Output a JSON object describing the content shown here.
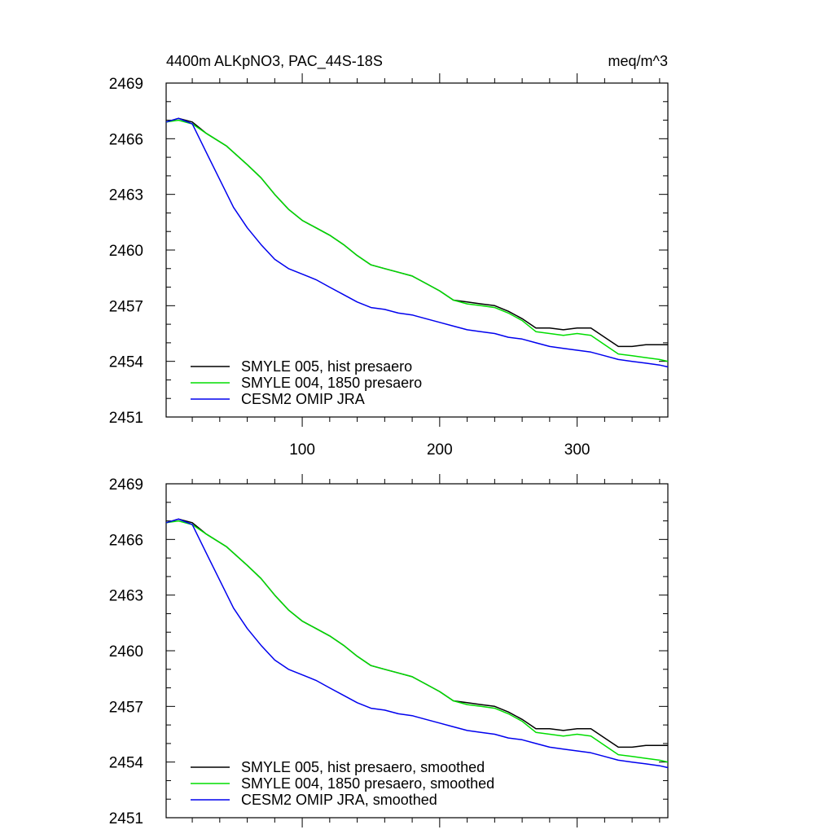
{
  "header": {
    "title": "4400m ALKpNO3, PAC_44S-18S",
    "units": "meq/m^3"
  },
  "chart_data": [
    {
      "type": "line",
      "title": "4400m ALKpNO3, PAC_44S-18S",
      "units": "meq/m^3",
      "xlim": [
        1,
        366
      ],
      "ylim": [
        2451,
        2469
      ],
      "y_ticks": [
        2451,
        2454,
        2457,
        2460,
        2463,
        2466,
        2469
      ],
      "x_ticks": [
        100,
        200,
        300
      ],
      "x_tick_labels_shown": true,
      "grid": false,
      "legend_position": "bottom-left",
      "series": [
        {
          "name": "SMYLE 005, hist presaero",
          "color": "#000000",
          "x": [
            1,
            10,
            20,
            30,
            45,
            60,
            70,
            80,
            90,
            100,
            110,
            120,
            130,
            140,
            150,
            160,
            170,
            180,
            190,
            200,
            210,
            220,
            230,
            240,
            250,
            260,
            270,
            280,
            290,
            300,
            310,
            320,
            330,
            340,
            350,
            360,
            366
          ],
          "y": [
            2466.9,
            2467.1,
            2466.9,
            2466.3,
            2465.6,
            2464.6,
            2463.9,
            2463.0,
            2462.2,
            2461.6,
            2461.2,
            2460.8,
            2460.3,
            2459.7,
            2459.2,
            2459.0,
            2458.8,
            2458.6,
            2458.2,
            2457.8,
            2457.3,
            2457.2,
            2457.1,
            2457.0,
            2456.7,
            2456.3,
            2455.8,
            2455.8,
            2455.7,
            2455.8,
            2455.8,
            2455.3,
            2454.8,
            2454.8,
            2454.9,
            2454.9,
            2454.9
          ]
        },
        {
          "name": "SMYLE 004, 1850 presaero",
          "color": "#00dd00",
          "x": [
            1,
            10,
            20,
            30,
            45,
            60,
            70,
            80,
            90,
            100,
            110,
            120,
            130,
            140,
            150,
            160,
            170,
            180,
            190,
            200,
            210,
            220,
            230,
            240,
            250,
            260,
            270,
            280,
            290,
            300,
            310,
            320,
            330,
            340,
            350,
            360,
            366
          ],
          "y": [
            2466.9,
            2467.0,
            2466.8,
            2466.3,
            2465.6,
            2464.6,
            2463.9,
            2463.0,
            2462.2,
            2461.6,
            2461.2,
            2460.8,
            2460.3,
            2459.7,
            2459.2,
            2459.0,
            2458.8,
            2458.6,
            2458.2,
            2457.8,
            2457.3,
            2457.1,
            2457.0,
            2456.9,
            2456.6,
            2456.2,
            2455.6,
            2455.5,
            2455.4,
            2455.5,
            2455.4,
            2454.9,
            2454.4,
            2454.3,
            2454.2,
            2454.1,
            2454.0
          ]
        },
        {
          "name": "CESM2 OMIP JRA",
          "color": "#0000ee",
          "x": [
            1,
            10,
            20,
            30,
            40,
            50,
            60,
            70,
            80,
            90,
            100,
            110,
            120,
            130,
            140,
            150,
            160,
            170,
            180,
            190,
            200,
            210,
            220,
            230,
            240,
            250,
            260,
            270,
            280,
            290,
            300,
            310,
            320,
            330,
            340,
            350,
            360,
            366
          ],
          "y": [
            2466.9,
            2467.1,
            2466.8,
            2465.3,
            2463.8,
            2462.3,
            2461.2,
            2460.3,
            2459.5,
            2459.0,
            2458.7,
            2458.4,
            2458.0,
            2457.6,
            2457.2,
            2456.9,
            2456.8,
            2456.6,
            2456.5,
            2456.3,
            2456.1,
            2455.9,
            2455.7,
            2455.6,
            2455.5,
            2455.3,
            2455.2,
            2455.0,
            2454.8,
            2454.7,
            2454.6,
            2454.5,
            2454.3,
            2454.1,
            2454.0,
            2453.9,
            2453.8,
            2453.7
          ]
        }
      ]
    },
    {
      "type": "line",
      "xlim": [
        1,
        366
      ],
      "ylim": [
        2451,
        2469
      ],
      "y_ticks": [
        2451,
        2454,
        2457,
        2460,
        2463,
        2466,
        2469
      ],
      "x_ticks": [
        100,
        200,
        300
      ],
      "x_tick_labels_shown": false,
      "grid": false,
      "legend_position": "bottom-left",
      "series": [
        {
          "name": "SMYLE 005, hist presaero, smoothed",
          "color": "#000000",
          "x": [
            1,
            10,
            20,
            30,
            45,
            60,
            70,
            80,
            90,
            100,
            110,
            120,
            130,
            140,
            150,
            160,
            170,
            180,
            190,
            200,
            210,
            220,
            230,
            240,
            250,
            260,
            270,
            280,
            290,
            300,
            310,
            320,
            330,
            340,
            350,
            360,
            366
          ],
          "y": [
            2466.9,
            2467.1,
            2466.9,
            2466.3,
            2465.6,
            2464.6,
            2463.9,
            2463.0,
            2462.2,
            2461.6,
            2461.2,
            2460.8,
            2460.3,
            2459.7,
            2459.2,
            2459.0,
            2458.8,
            2458.6,
            2458.2,
            2457.8,
            2457.3,
            2457.2,
            2457.1,
            2457.0,
            2456.7,
            2456.3,
            2455.8,
            2455.8,
            2455.7,
            2455.8,
            2455.8,
            2455.3,
            2454.8,
            2454.8,
            2454.9,
            2454.9,
            2454.9
          ]
        },
        {
          "name": "SMYLE 004, 1850 presaero, smoothed",
          "color": "#00dd00",
          "x": [
            1,
            10,
            20,
            30,
            45,
            60,
            70,
            80,
            90,
            100,
            110,
            120,
            130,
            140,
            150,
            160,
            170,
            180,
            190,
            200,
            210,
            220,
            230,
            240,
            250,
            260,
            270,
            280,
            290,
            300,
            310,
            320,
            330,
            340,
            350,
            360,
            366
          ],
          "y": [
            2466.9,
            2467.0,
            2466.8,
            2466.3,
            2465.6,
            2464.6,
            2463.9,
            2463.0,
            2462.2,
            2461.6,
            2461.2,
            2460.8,
            2460.3,
            2459.7,
            2459.2,
            2459.0,
            2458.8,
            2458.6,
            2458.2,
            2457.8,
            2457.3,
            2457.1,
            2457.0,
            2456.9,
            2456.6,
            2456.2,
            2455.6,
            2455.5,
            2455.4,
            2455.5,
            2455.4,
            2454.9,
            2454.4,
            2454.3,
            2454.2,
            2454.1,
            2454.0
          ]
        },
        {
          "name": "CESM2 OMIP JRA, smoothed",
          "color": "#0000ee",
          "x": [
            1,
            10,
            20,
            30,
            40,
            50,
            60,
            70,
            80,
            90,
            100,
            110,
            120,
            130,
            140,
            150,
            160,
            170,
            180,
            190,
            200,
            210,
            220,
            230,
            240,
            250,
            260,
            270,
            280,
            290,
            300,
            310,
            320,
            330,
            340,
            350,
            360,
            366
          ],
          "y": [
            2466.9,
            2467.1,
            2466.8,
            2465.3,
            2463.8,
            2462.3,
            2461.2,
            2460.3,
            2459.5,
            2459.0,
            2458.7,
            2458.4,
            2458.0,
            2457.6,
            2457.2,
            2456.9,
            2456.8,
            2456.6,
            2456.5,
            2456.3,
            2456.1,
            2455.9,
            2455.7,
            2455.6,
            2455.5,
            2455.3,
            2455.2,
            2455.0,
            2454.8,
            2454.7,
            2454.6,
            2454.5,
            2454.3,
            2454.1,
            2454.0,
            2453.9,
            2453.8,
            2453.7
          ]
        }
      ]
    }
  ]
}
